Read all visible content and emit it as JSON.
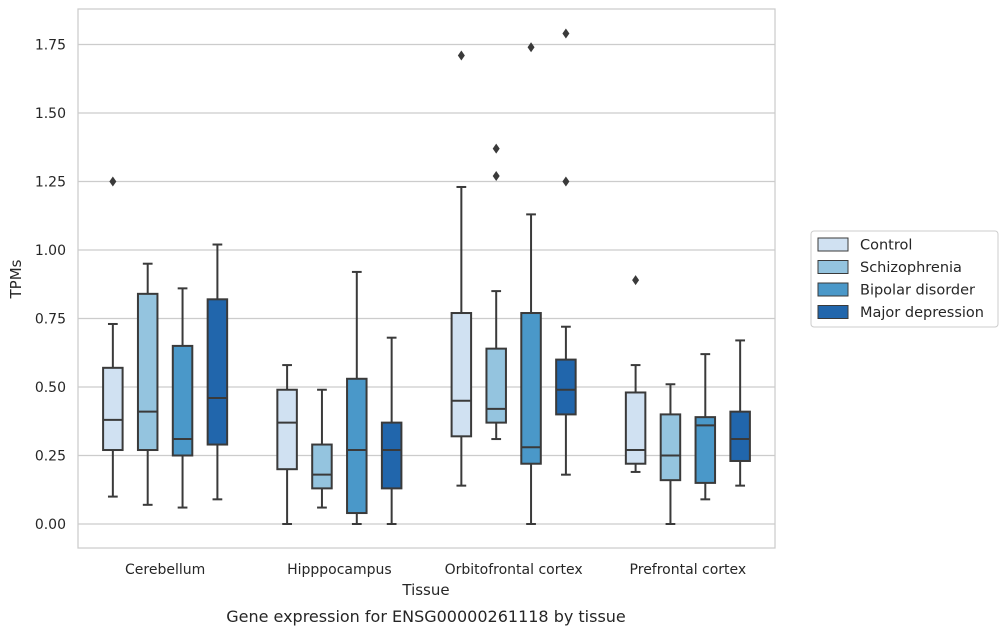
{
  "chart_data": {
    "type": "box",
    "title": "",
    "caption": "Gene expression for ENSG00000261118 by tissue",
    "xlabel": "Tissue",
    "ylabel": "TPMs",
    "ylim": [
      -0.085,
      1.88
    ],
    "yticks": [
      0.0,
      0.25,
      0.5,
      0.75,
      1.0,
      1.25,
      1.5,
      1.75
    ],
    "ytick_labels": [
      "0.00",
      "0.25",
      "0.50",
      "0.75",
      "1.00",
      "1.25",
      "1.50",
      "1.75"
    ],
    "grid": "horizontal",
    "legend_position": "right",
    "categories": [
      "Cerebellum",
      "Hipppocampus",
      "Orbitofrontal cortex",
      "Prefrontal cortex"
    ],
    "series": [
      {
        "name": "Control",
        "color": "#d0e1f2",
        "boxes": [
          {
            "whisker_low": 0.1,
            "q1": 0.27,
            "median": 0.38,
            "q3": 0.57,
            "whisker_high": 0.73,
            "outliers": [
              1.25
            ]
          },
          {
            "whisker_low": 0.0,
            "q1": 0.2,
            "median": 0.37,
            "q3": 0.49,
            "whisker_high": 0.58,
            "outliers": []
          },
          {
            "whisker_low": 0.14,
            "q1": 0.32,
            "median": 0.45,
            "q3": 0.77,
            "whisker_high": 1.23,
            "outliers": [
              1.71
            ]
          },
          {
            "whisker_low": 0.19,
            "q1": 0.22,
            "median": 0.27,
            "q3": 0.48,
            "whisker_high": 0.58,
            "outliers": [
              0.89
            ]
          }
        ]
      },
      {
        "name": "Schizophrenia",
        "color": "#94c4df",
        "boxes": [
          {
            "whisker_low": 0.07,
            "q1": 0.27,
            "median": 0.41,
            "q3": 0.84,
            "whisker_high": 0.95,
            "outliers": []
          },
          {
            "whisker_low": 0.06,
            "q1": 0.13,
            "median": 0.18,
            "q3": 0.29,
            "whisker_high": 0.49,
            "outliers": []
          },
          {
            "whisker_low": 0.31,
            "q1": 0.37,
            "median": 0.42,
            "q3": 0.64,
            "whisker_high": 0.85,
            "outliers": [
              1.27,
              1.37
            ]
          },
          {
            "whisker_low": 0.0,
            "q1": 0.16,
            "median": 0.25,
            "q3": 0.4,
            "whisker_high": 0.51,
            "outliers": []
          }
        ]
      },
      {
        "name": "Bipolar disorder",
        "color": "#4a98c9",
        "boxes": [
          {
            "whisker_low": 0.06,
            "q1": 0.25,
            "median": 0.31,
            "q3": 0.65,
            "whisker_high": 0.86,
            "outliers": []
          },
          {
            "whisker_low": 0.0,
            "q1": 0.04,
            "median": 0.27,
            "q3": 0.53,
            "whisker_high": 0.92,
            "outliers": []
          },
          {
            "whisker_low": 0.0,
            "q1": 0.22,
            "median": 0.28,
            "q3": 0.77,
            "whisker_high": 1.13,
            "outliers": [
              1.74
            ]
          },
          {
            "whisker_low": 0.09,
            "q1": 0.15,
            "median": 0.36,
            "q3": 0.39,
            "whisker_high": 0.62,
            "outliers": []
          }
        ]
      },
      {
        "name": "Major depression",
        "color": "#2166ac",
        "boxes": [
          {
            "whisker_low": 0.09,
            "q1": 0.29,
            "median": 0.46,
            "q3": 0.82,
            "whisker_high": 1.02,
            "outliers": []
          },
          {
            "whisker_low": 0.0,
            "q1": 0.13,
            "median": 0.27,
            "q3": 0.37,
            "whisker_high": 0.68,
            "outliers": []
          },
          {
            "whisker_low": 0.18,
            "q1": 0.4,
            "median": 0.49,
            "q3": 0.6,
            "whisker_high": 0.72,
            "outliers": [
              1.25,
              1.79
            ]
          },
          {
            "whisker_low": 0.14,
            "q1": 0.23,
            "median": 0.31,
            "q3": 0.41,
            "whisker_high": 0.67,
            "outliers": []
          }
        ]
      }
    ]
  }
}
